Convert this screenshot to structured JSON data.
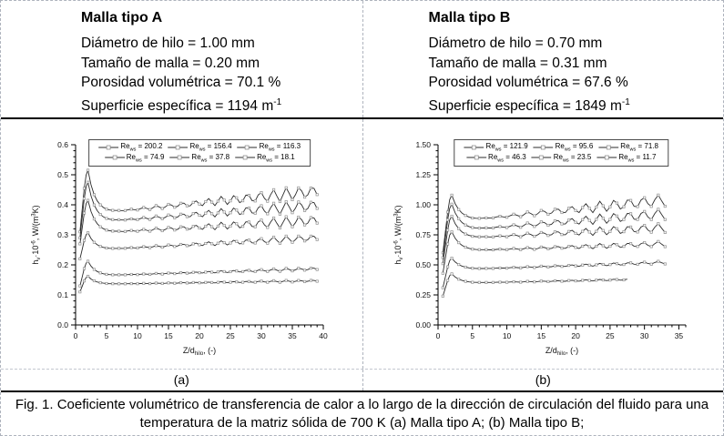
{
  "page": {
    "caption": "Fig. 1. Coeficiente volumétrico de transferencia de calor a lo largo de la dirección de circulación del fluido para una temperatura de la matriz sólida de 700 K (a) Malla tipo A; (b) Malla tipo B;",
    "sublabels": {
      "a": "(a)",
      "b": "(b)"
    }
  },
  "headers": [
    {
      "title": "Malla tipo A",
      "lines": [
        {
          "text": "Diámetro de hilo = 1.00 mm",
          "sup": ""
        },
        {
          "text": "Tamaño de malla = 0.20 mm",
          "sup": ""
        },
        {
          "text": "Porosidad volumétrica = 70.1 %",
          "sup": ""
        },
        {
          "text": "Superficie específica = 1194 m",
          "sup": "-1"
        }
      ]
    },
    {
      "title": "Malla tipo B",
      "lines": [
        {
          "text": "Diámetro de hilo = 0.70 mm",
          "sup": ""
        },
        {
          "text": "Tamaño de malla = 0.31 mm",
          "sup": ""
        },
        {
          "text": "Porosidad volumétrica = 67.6 %",
          "sup": ""
        },
        {
          "text": "Superficie específica = 1849 m",
          "sup": "-1"
        }
      ]
    }
  ],
  "chart_data": [
    {
      "type": "line",
      "id": "a",
      "xlabel": {
        "base": "Z/d",
        "sub": "hilo",
        "rest": ", (-)"
      },
      "ylabel": {
        "base": "h",
        "sub": "v",
        "mid": "·10",
        "sup": "-6",
        "rest": ", W/(m",
        "sup2": "3",
        "rest2": "K)"
      },
      "xlim": [
        0,
        40
      ],
      "ylim": [
        0,
        0.6
      ],
      "xminor": 1,
      "xmajor_every": 5,
      "xmax_label": 40,
      "yminor": 0.02,
      "ymajor_every": 5,
      "ydecimals": 1,
      "legend": {
        "prefix": "Re",
        "sub": "ws",
        "eq": " = "
      },
      "series": [
        {
          "name": "Re_ws = 200.2",
          "re": "200.2",
          "x0": 0.7,
          "x_peak": 2,
          "y_start": 0.31,
          "y_peak": 0.515,
          "y_plateau": 0.375,
          "y_end": 0.445,
          "osc_amp": 0.023,
          "osc_period": 2.1,
          "x_end": 39
        },
        {
          "name": "Re_ws = 156.4",
          "re": "156.4",
          "x0": 0.7,
          "x_peak": 2,
          "y_start": 0.29,
          "y_peak": 0.475,
          "y_plateau": 0.345,
          "y_end": 0.398,
          "osc_amp": 0.021,
          "osc_period": 2.1,
          "x_end": 39
        },
        {
          "name": "Re_ws = 116.3",
          "re": "116.3",
          "x0": 0.7,
          "x_peak": 2,
          "y_start": 0.27,
          "y_peak": 0.415,
          "y_plateau": 0.308,
          "y_end": 0.348,
          "osc_amp": 0.019,
          "osc_period": 2.1,
          "x_end": 39
        },
        {
          "name": "Re_ws = 74.9",
          "re": "74.9",
          "x0": 0.7,
          "x_peak": 2,
          "y_start": 0.22,
          "y_peak": 0.307,
          "y_plateau": 0.252,
          "y_end": 0.29,
          "osc_amp": 0.012,
          "osc_period": 2.1,
          "x_end": 39
        },
        {
          "name": "Re_ws = 37.8",
          "re": "37.8",
          "x0": 0.7,
          "x_peak": 2,
          "y_start": 0.13,
          "y_peak": 0.212,
          "y_plateau": 0.165,
          "y_end": 0.187,
          "osc_amp": 0.005,
          "osc_period": 2.1,
          "x_end": 39
        },
        {
          "name": "Re_ws = 18.1",
          "re": "18.1",
          "x0": 0.7,
          "x_peak": 2,
          "y_start": 0.11,
          "y_peak": 0.162,
          "y_plateau": 0.136,
          "y_end": 0.147,
          "osc_amp": 0.003,
          "osc_period": 2.1,
          "x_end": 39
        }
      ]
    },
    {
      "type": "line",
      "id": "b",
      "xlabel": {
        "base": "Z/d",
        "sub": "hilo",
        "rest": ", (-)"
      },
      "ylabel": {
        "base": "h",
        "sub": "v",
        "mid": "·10",
        "sup": "-6",
        "rest": ", W/(m",
        "sup2": "3",
        "rest2": "K)"
      },
      "xlim": [
        0,
        36
      ],
      "ylim": [
        0,
        1.5
      ],
      "xminor": 1,
      "xmajor_every": 5,
      "xmax_label": 35,
      "yminor": 0.05,
      "ymajor_every": 5,
      "ydecimals": 2,
      "legend": {
        "prefix": "Re",
        "sub": "ws",
        "eq": " = "
      },
      "series": [
        {
          "name": "Re_ws = 121.9",
          "re": "121.9",
          "x0": 0.7,
          "x_peak": 2,
          "y_start": 0.6,
          "y_peak": 1.08,
          "y_plateau": 0.875,
          "y_end": 1.04,
          "osc_amp": 0.055,
          "osc_period": 2.1,
          "x_end": 33
        },
        {
          "name": "Re_ws = 95.6",
          "re": "95.6",
          "x0": 0.7,
          "x_peak": 2,
          "y_start": 0.56,
          "y_peak": 1.005,
          "y_plateau": 0.795,
          "y_end": 0.925,
          "osc_amp": 0.05,
          "osc_period": 2.1,
          "x_end": 33
        },
        {
          "name": "Re_ws = 71.8",
          "re": "71.8",
          "x0": 0.7,
          "x_peak": 2,
          "y_start": 0.51,
          "y_peak": 0.905,
          "y_plateau": 0.725,
          "y_end": 0.81,
          "osc_amp": 0.042,
          "osc_period": 2.1,
          "x_end": 33
        },
        {
          "name": "Re_ws = 46.3",
          "re": "46.3",
          "x0": 0.7,
          "x_peak": 2,
          "y_start": 0.43,
          "y_peak": 0.775,
          "y_plateau": 0.62,
          "y_end": 0.675,
          "osc_amp": 0.025,
          "osc_period": 2.1,
          "x_end": 33
        },
        {
          "name": "Re_ws = 23.5",
          "re": "23.5",
          "x0": 0.7,
          "x_peak": 2,
          "y_start": 0.31,
          "y_peak": 0.555,
          "y_plateau": 0.465,
          "y_end": 0.52,
          "osc_amp": 0.013,
          "osc_period": 2.1,
          "x_end": 33
        },
        {
          "name": "Re_ws = 11.7",
          "re": "11.7",
          "x0": 0.7,
          "x_peak": 2,
          "y_start": 0.24,
          "y_peak": 0.425,
          "y_plateau": 0.35,
          "y_end": 0.378,
          "osc_amp": 0.006,
          "osc_period": 2.1,
          "x_end": 27.5
        }
      ]
    }
  ],
  "colors": {
    "background": "#ffffff",
    "border_dashed": "#aeb3bd",
    "border_solid": "#000000",
    "axis": "#000000",
    "curve": "#2b2b2b",
    "marker": "#8f8f8f",
    "legend_border": "#4a4a4a",
    "text": "#000000"
  }
}
